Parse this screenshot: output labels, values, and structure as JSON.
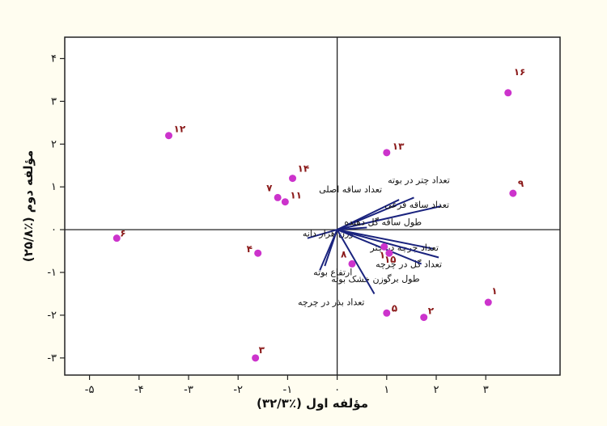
{
  "chart_data": {
    "type": "scatter",
    "title": "",
    "xlabel": "مؤلفه اول (٪۳۲/۳)",
    "ylabel": "مؤلفه دوم (٪۲۵/۸)",
    "xlim": [
      -5.5,
      4.5
    ],
    "ylim": [
      -3.4,
      4.5
    ],
    "x_ticks": [
      -5,
      -4,
      -3,
      -2,
      -1,
      0,
      1,
      2,
      3
    ],
    "x_tick_labels": [
      "-۵",
      "-۴",
      "-۳",
      "-۲",
      "-۱",
      "۰",
      "۱",
      "۲",
      "۳"
    ],
    "y_ticks": [
      -3,
      -2,
      -1,
      0,
      1,
      2,
      3,
      4
    ],
    "y_tick_labels": [
      "-۳",
      "-۲",
      "-۱",
      "۰",
      "۱",
      "۲",
      "۳",
      "۴"
    ],
    "reference_lines": {
      "x": 0,
      "y": 0
    },
    "grid": false,
    "point_color": "#cc33cc",
    "label_color": "#8b1a1a",
    "vector_color": "#1a237e",
    "points": [
      {
        "label": "۱",
        "x": 3.05,
        "y": -1.7
      },
      {
        "label": "۲",
        "x": 1.75,
        "y": -2.05
      },
      {
        "label": "۳",
        "x": -1.65,
        "y": -3.0
      },
      {
        "label": "۴",
        "x": -1.6,
        "y": -0.55
      },
      {
        "label": "۵",
        "x": 1.0,
        "y": -1.95
      },
      {
        "label": "۶",
        "x": -4.45,
        "y": -0.2
      },
      {
        "label": "۷",
        "x": -1.2,
        "y": 0.75
      },
      {
        "label": "۸",
        "x": 0.3,
        "y": -0.8
      },
      {
        "label": "۹",
        "x": 3.55,
        "y": 0.85
      },
      {
        "label": "۱۰",
        "x": 0.95,
        "y": -0.4
      },
      {
        "label": "۱۱",
        "x": -1.05,
        "y": 0.65
      },
      {
        "label": "۱۲",
        "x": -3.4,
        "y": 2.2
      },
      {
        "label": "۱۳",
        "x": 1.0,
        "y": 1.8
      },
      {
        "label": "۱۴",
        "x": -0.9,
        "y": 1.2
      },
      {
        "label": "۱۵",
        "x": 1.05,
        "y": -0.55
      },
      {
        "label": "۱۶",
        "x": 3.45,
        "y": 3.2
      }
    ],
    "vectors": [
      {
        "name": "تعداد چتر در بوته",
        "x": 1.55,
        "y": 0.75
      },
      {
        "name": "تعداد ساقه اصلی",
        "x": 1.25,
        "y": 0.7
      },
      {
        "name": "تعداد ساقه فرعی",
        "x": 2.1,
        "y": 0.55
      },
      {
        "name": "طول ساقه گل دهنده",
        "x": 0.6,
        "y": 0.05
      },
      {
        "name": "وزن هزار دانه",
        "x": -0.6,
        "y": -0.2
      },
      {
        "name": "تعداد چرچه در چتر",
        "x": 1.95,
        "y": -0.45
      },
      {
        "name": "تعداد گل در چرچه",
        "x": 2.05,
        "y": -0.65
      },
      {
        "name": "طول برگ",
        "x": 1.7,
        "y": -0.8
      },
      {
        "name": "ارتفاع بوته",
        "x": -0.35,
        "y": -0.95
      },
      {
        "name": "وزن خشک بوته",
        "x": -0.25,
        "y": -0.85
      },
      {
        "name": "تعداد بذر در چرچه",
        "x": 0.75,
        "y": -1.5
      }
    ]
  }
}
